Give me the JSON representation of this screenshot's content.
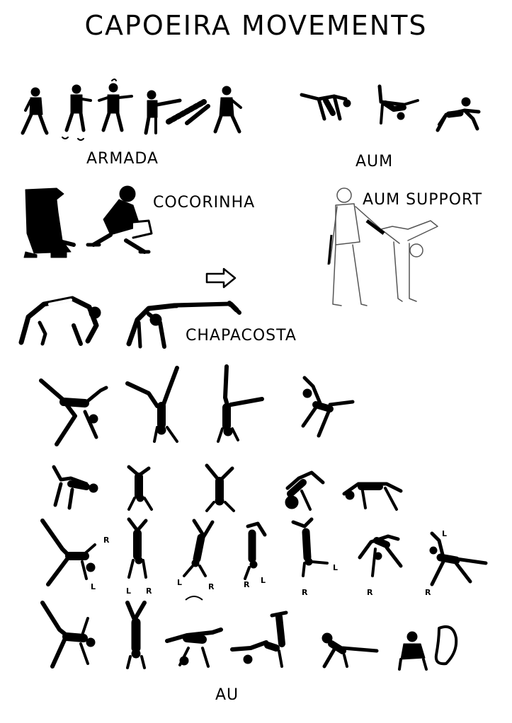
{
  "title": "Capoeira movements",
  "labels": {
    "armada": "Armada",
    "aum": "Aum",
    "cocorinha": "Cocorinha",
    "aum_support": "Aum Support",
    "chapacosta": "Chapacosta",
    "au": "Au"
  },
  "side_marks": {
    "r": "R",
    "l": "L"
  }
}
